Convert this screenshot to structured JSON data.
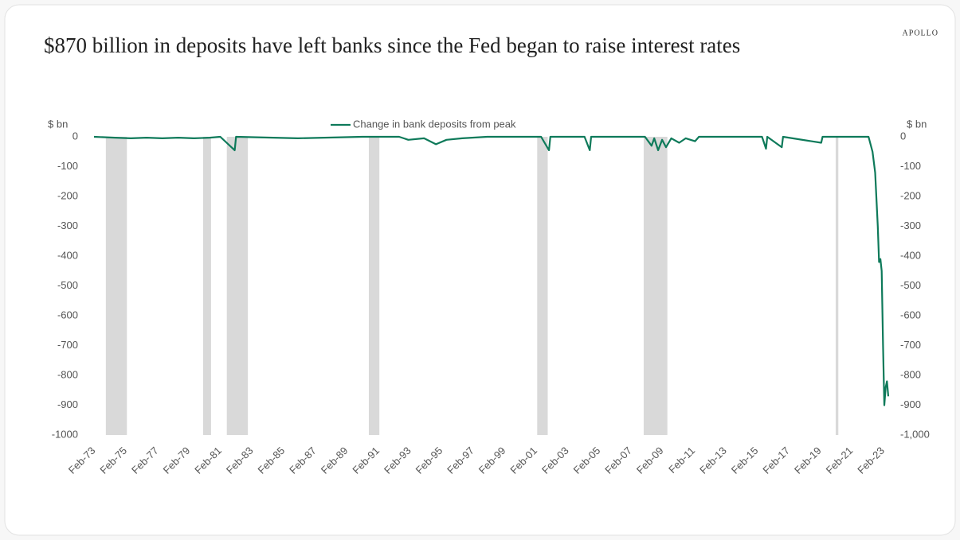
{
  "chart_data": {
    "type": "line",
    "title": "$870 billion in deposits have left banks since the Fed began to raise interest rates",
    "brand": "APOLLO",
    "yaxis_label": "$ bn",
    "y2axis_label": "$ bn",
    "x": [
      "1973-02",
      "1974-06",
      "1975-06",
      "1976-06",
      "1977-06",
      "1978-06",
      "1979-06",
      "1980-06",
      "1981-02",
      "1982-01",
      "1982-02",
      "1986-01",
      "1990-02",
      "1992-06",
      "1993-01",
      "1994-01",
      "1994-10",
      "1995-06",
      "1996-06",
      "1998-01",
      "2001-06",
      "2001-12",
      "2002-01",
      "2004-03",
      "2004-07",
      "2004-08",
      "2008-01",
      "2008-06",
      "2008-08",
      "2008-11",
      "2009-02",
      "2009-05",
      "2009-09",
      "2010-03",
      "2010-08",
      "2011-03",
      "2011-06",
      "2015-06",
      "2015-09",
      "2015-10",
      "2016-09",
      "2016-10",
      "2019-03",
      "2019-04",
      "2022-03",
      "2022-06",
      "2022-08",
      "2022-10",
      "2022-11",
      "2022-12",
      "2023-01",
      "2023-02",
      "2023-03",
      "2023-04",
      "2023-05",
      "2023-06"
    ],
    "series": [
      {
        "name": "Change in bank deposits from peak",
        "color": "#0e7a5a",
        "values": [
          0,
          -3,
          -5,
          -3,
          -5,
          -3,
          -5,
          -3,
          0,
          -45,
          0,
          -5,
          0,
          0,
          -10,
          -5,
          -25,
          -10,
          -5,
          0,
          0,
          -45,
          0,
          0,
          -45,
          0,
          0,
          -30,
          -5,
          -45,
          -10,
          -35,
          -5,
          -20,
          -5,
          -15,
          0,
          0,
          -40,
          0,
          -35,
          0,
          -20,
          0,
          0,
          -50,
          -120,
          -300,
          -420,
          -410,
          -450,
          -700,
          -900,
          -840,
          -820,
          -870
        ]
      }
    ],
    "shaded_periods": [
      {
        "start": "1973-11",
        "end": "1975-03"
      },
      {
        "start": "1980-01",
        "end": "1980-07"
      },
      {
        "start": "1981-07",
        "end": "1982-11"
      },
      {
        "start": "1990-07",
        "end": "1991-03"
      },
      {
        "start": "2001-03",
        "end": "2001-11"
      },
      {
        "start": "2007-12",
        "end": "2009-06"
      },
      {
        "start": "2020-02",
        "end": "2020-04"
      }
    ],
    "xlim": [
      "1973-02",
      "2023-06"
    ],
    "xticks": [
      {
        "value": "1973-02",
        "label": "Feb-73"
      },
      {
        "value": "1975-02",
        "label": "Feb-75"
      },
      {
        "value": "1977-02",
        "label": "Feb-77"
      },
      {
        "value": "1979-02",
        "label": "Feb-79"
      },
      {
        "value": "1981-02",
        "label": "Feb-81"
      },
      {
        "value": "1983-02",
        "label": "Feb-83"
      },
      {
        "value": "1985-02",
        "label": "Feb-85"
      },
      {
        "value": "1987-02",
        "label": "Feb-87"
      },
      {
        "value": "1989-02",
        "label": "Feb-89"
      },
      {
        "value": "1991-02",
        "label": "Feb-91"
      },
      {
        "value": "1993-02",
        "label": "Feb-93"
      },
      {
        "value": "1995-02",
        "label": "Feb-95"
      },
      {
        "value": "1997-02",
        "label": "Feb-97"
      },
      {
        "value": "1999-02",
        "label": "Feb-99"
      },
      {
        "value": "2001-02",
        "label": "Feb-01"
      },
      {
        "value": "2003-02",
        "label": "Feb-03"
      },
      {
        "value": "2005-02",
        "label": "Feb-05"
      },
      {
        "value": "2007-02",
        "label": "Feb-07"
      },
      {
        "value": "2009-02",
        "label": "Feb-09"
      },
      {
        "value": "2011-02",
        "label": "Feb-11"
      },
      {
        "value": "2013-02",
        "label": "Feb-13"
      },
      {
        "value": "2015-02",
        "label": "Feb-15"
      },
      {
        "value": "2017-02",
        "label": "Feb-17"
      },
      {
        "value": "2019-02",
        "label": "Feb-19"
      },
      {
        "value": "2021-02",
        "label": "Feb-21"
      },
      {
        "value": "2023-02",
        "label": "Feb-23"
      }
    ],
    "ylim": [
      -1000,
      0
    ],
    "yticks": [
      0,
      -100,
      -200,
      -300,
      -400,
      -500,
      -600,
      -700,
      -800,
      -900,
      -1000
    ],
    "y2lim": [
      -1000,
      0
    ],
    "y2ticks": [
      0,
      -100,
      -200,
      -300,
      -400,
      -500,
      -600,
      -700,
      -800,
      -900,
      {
        "value": -1000,
        "label": "-1,000"
      }
    ],
    "legend": "top"
  }
}
